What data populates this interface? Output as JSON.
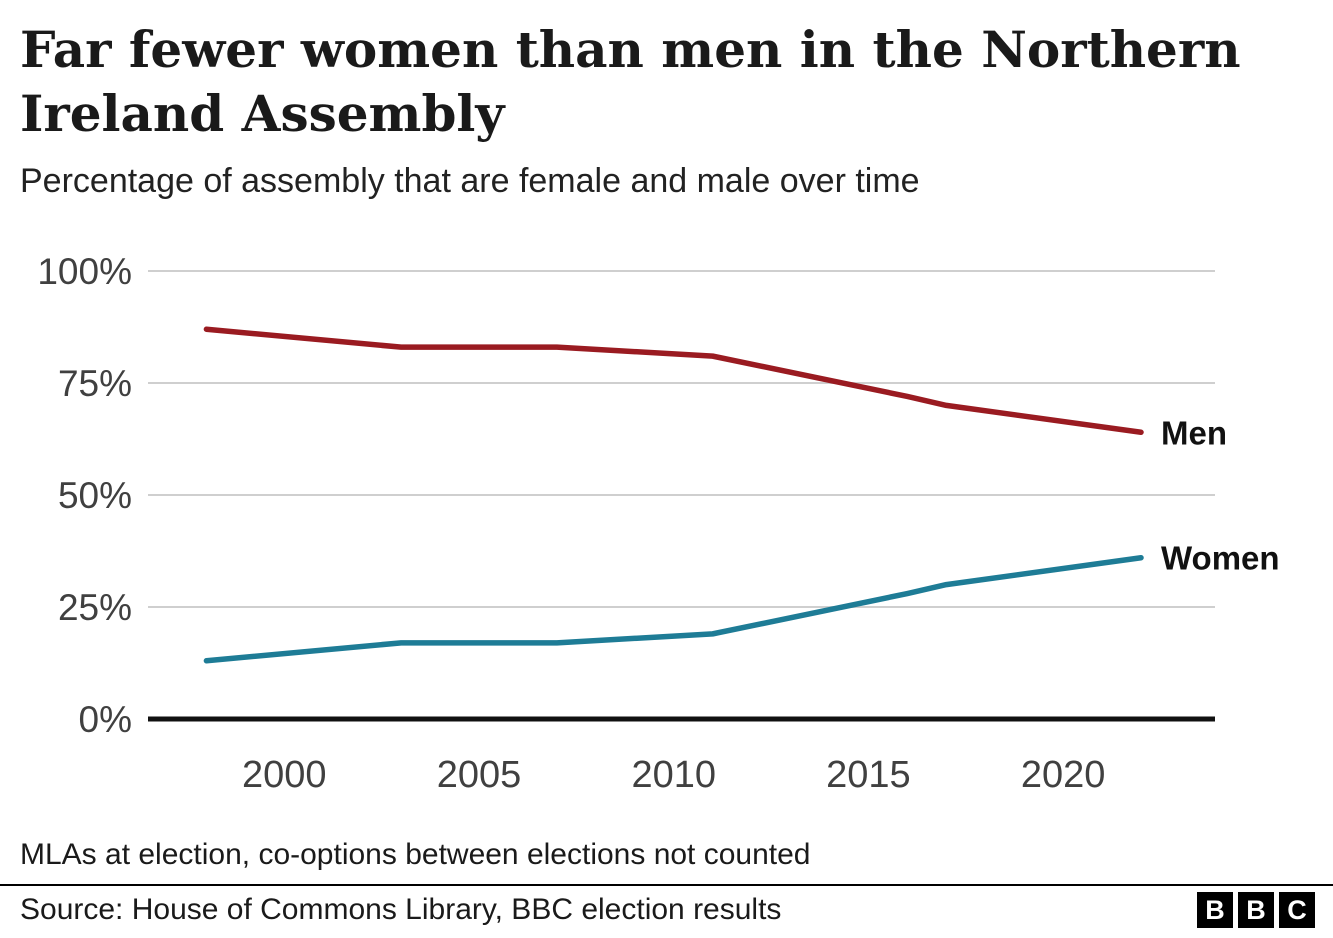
{
  "chart_data": {
    "type": "line",
    "title": "Far fewer women than men in the Northern Ireland Assembly",
    "subtitle": "Percentage of assembly that are female and male over time",
    "x": [
      1998,
      2003,
      2007,
      2011,
      2016,
      2017,
      2022
    ],
    "series": [
      {
        "name": "Men",
        "color": "#9a1b21",
        "values": [
          87,
          83,
          83,
          81,
          72,
          70,
          64
        ]
      },
      {
        "name": "Women",
        "color": "#1e7c96",
        "values": [
          13,
          17,
          17,
          19,
          28,
          30,
          36
        ]
      }
    ],
    "y_ticks": [
      0,
      25,
      50,
      75,
      100
    ],
    "y_tick_labels": [
      "0%",
      "25%",
      "50%",
      "75%",
      "100%"
    ],
    "x_ticks": [
      2000,
      2005,
      2010,
      2015,
      2020
    ],
    "x_tick_labels": [
      "2000",
      "2005",
      "2010",
      "2015",
      "2020"
    ],
    "ylim": [
      0,
      100
    ],
    "xlim": [
      1996.5,
      2023.9
    ],
    "grid": "horizontal",
    "legend": "line-end-labels",
    "colors": {
      "gridline": "#cfcfcf",
      "axis": "#111111",
      "tick_text": "#404040",
      "label_text": "#111111"
    }
  },
  "footnote": "MLAs at election, co-options between elections not counted",
  "source": "Source: House of Commons Library, BBC election results",
  "logo": {
    "letters": [
      "B",
      "B",
      "C"
    ]
  }
}
